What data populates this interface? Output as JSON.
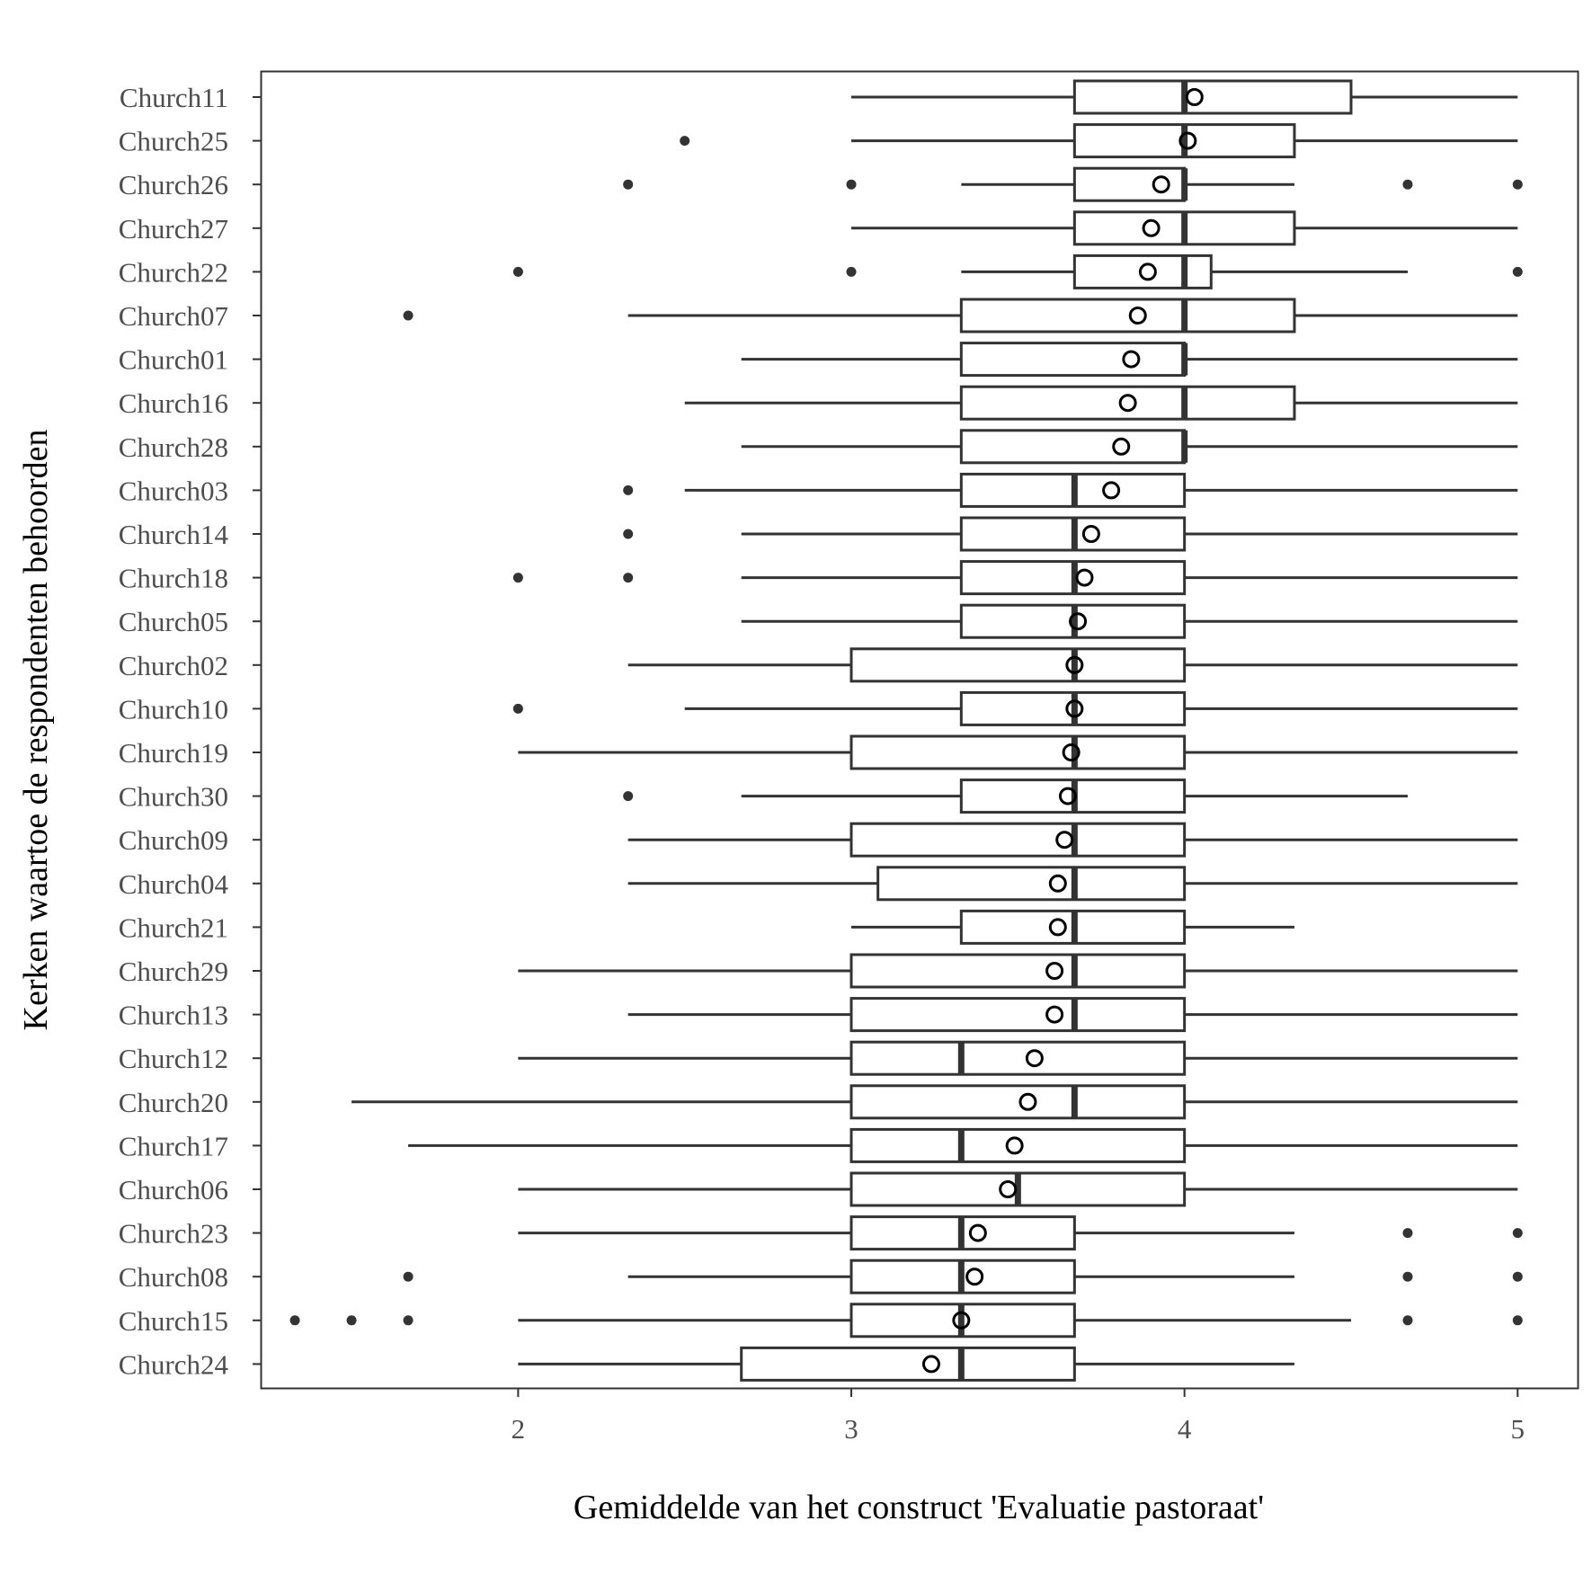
{
  "chart_data": {
    "type": "boxplot",
    "orientation": "horizontal",
    "xlabel": "Gemiddelde van het construct 'Evaluatie pastoraat'",
    "ylabel": "Kerken waartoe de respondenten behoorden",
    "xlim": [
      1.23,
      5.18
    ],
    "x_ticks": [
      2,
      3,
      4,
      5
    ],
    "grid": false,
    "colors": {
      "box": "#333333",
      "frame": "#333333",
      "background": "#ffffff"
    },
    "marker_legend": {
      "filled_dot": "outlier",
      "open_circle": "mean"
    },
    "categories": [
      "Church11",
      "Church25",
      "Church26",
      "Church27",
      "Church22",
      "Church07",
      "Church01",
      "Church16",
      "Church28",
      "Church03",
      "Church14",
      "Church18",
      "Church05",
      "Church02",
      "Church10",
      "Church19",
      "Church30",
      "Church09",
      "Church04",
      "Church21",
      "Church29",
      "Church13",
      "Church12",
      "Church20",
      "Church17",
      "Church06",
      "Church23",
      "Church08",
      "Church15",
      "Church24"
    ],
    "series": [
      {
        "label": "Church11",
        "whisker_low": 3.0,
        "q1": 3.67,
        "median": 4.0,
        "q3": 4.5,
        "whisker_high": 5.0,
        "mean": 4.03,
        "outliers": []
      },
      {
        "label": "Church25",
        "whisker_low": 3.0,
        "q1": 3.67,
        "median": 4.0,
        "q3": 4.33,
        "whisker_high": 5.0,
        "mean": 4.01,
        "outliers": [
          2.5
        ]
      },
      {
        "label": "Church26",
        "whisker_low": 3.33,
        "q1": 3.67,
        "median": 4.0,
        "q3": 4.0,
        "whisker_high": 4.33,
        "mean": 3.93,
        "outliers": [
          2.33,
          3.0,
          4.67,
          5.0
        ]
      },
      {
        "label": "Church27",
        "whisker_low": 3.0,
        "q1": 3.67,
        "median": 4.0,
        "q3": 4.33,
        "whisker_high": 5.0,
        "mean": 3.9,
        "outliers": []
      },
      {
        "label": "Church22",
        "whisker_low": 3.33,
        "q1": 3.67,
        "median": 4.0,
        "q3": 4.08,
        "whisker_high": 4.67,
        "mean": 3.89,
        "outliers": [
          2.0,
          3.0,
          5.0
        ]
      },
      {
        "label": "Church07",
        "whisker_low": 2.33,
        "q1": 3.33,
        "median": 4.0,
        "q3": 4.33,
        "whisker_high": 5.0,
        "mean": 3.86,
        "outliers": [
          1.67
        ]
      },
      {
        "label": "Church01",
        "whisker_low": 2.67,
        "q1": 3.33,
        "median": 4.0,
        "q3": 4.0,
        "whisker_high": 5.0,
        "mean": 3.84,
        "outliers": []
      },
      {
        "label": "Church16",
        "whisker_low": 2.5,
        "q1": 3.33,
        "median": 4.0,
        "q3": 4.33,
        "whisker_high": 5.0,
        "mean": 3.83,
        "outliers": []
      },
      {
        "label": "Church28",
        "whisker_low": 2.67,
        "q1": 3.33,
        "median": 4.0,
        "q3": 4.0,
        "whisker_high": 5.0,
        "mean": 3.81,
        "outliers": []
      },
      {
        "label": "Church03",
        "whisker_low": 2.5,
        "q1": 3.33,
        "median": 3.67,
        "q3": 4.0,
        "whisker_high": 5.0,
        "mean": 3.78,
        "outliers": [
          2.33
        ]
      },
      {
        "label": "Church14",
        "whisker_low": 2.67,
        "q1": 3.33,
        "median": 3.67,
        "q3": 4.0,
        "whisker_high": 5.0,
        "mean": 3.72,
        "outliers": [
          2.33
        ]
      },
      {
        "label": "Church18",
        "whisker_low": 2.67,
        "q1": 3.33,
        "median": 3.67,
        "q3": 4.0,
        "whisker_high": 5.0,
        "mean": 3.7,
        "outliers": [
          2.0,
          2.33
        ]
      },
      {
        "label": "Church05",
        "whisker_low": 2.67,
        "q1": 3.33,
        "median": 3.67,
        "q3": 4.0,
        "whisker_high": 5.0,
        "mean": 3.68,
        "outliers": []
      },
      {
        "label": "Church02",
        "whisker_low": 2.33,
        "q1": 3.0,
        "median": 3.67,
        "q3": 4.0,
        "whisker_high": 5.0,
        "mean": 3.67,
        "outliers": []
      },
      {
        "label": "Church10",
        "whisker_low": 2.5,
        "q1": 3.33,
        "median": 3.67,
        "q3": 4.0,
        "whisker_high": 5.0,
        "mean": 3.67,
        "outliers": [
          2.0
        ]
      },
      {
        "label": "Church19",
        "whisker_low": 2.0,
        "q1": 3.0,
        "median": 3.67,
        "q3": 4.0,
        "whisker_high": 5.0,
        "mean": 3.66,
        "outliers": []
      },
      {
        "label": "Church30",
        "whisker_low": 2.67,
        "q1": 3.33,
        "median": 3.67,
        "q3": 4.0,
        "whisker_high": 4.67,
        "mean": 3.65,
        "outliers": [
          2.33
        ]
      },
      {
        "label": "Church09",
        "whisker_low": 2.33,
        "q1": 3.0,
        "median": 3.67,
        "q3": 4.0,
        "whisker_high": 5.0,
        "mean": 3.64,
        "outliers": []
      },
      {
        "label": "Church04",
        "whisker_low": 2.33,
        "q1": 3.08,
        "median": 3.67,
        "q3": 4.0,
        "whisker_high": 5.0,
        "mean": 3.62,
        "outliers": []
      },
      {
        "label": "Church21",
        "whisker_low": 3.0,
        "q1": 3.33,
        "median": 3.67,
        "q3": 4.0,
        "whisker_high": 4.33,
        "mean": 3.62,
        "outliers": []
      },
      {
        "label": "Church29",
        "whisker_low": 2.0,
        "q1": 3.0,
        "median": 3.67,
        "q3": 4.0,
        "whisker_high": 5.0,
        "mean": 3.61,
        "outliers": []
      },
      {
        "label": "Church13",
        "whisker_low": 2.33,
        "q1": 3.0,
        "median": 3.67,
        "q3": 4.0,
        "whisker_high": 5.0,
        "mean": 3.61,
        "outliers": []
      },
      {
        "label": "Church12",
        "whisker_low": 2.0,
        "q1": 3.0,
        "median": 3.33,
        "q3": 4.0,
        "whisker_high": 5.0,
        "mean": 3.55,
        "outliers": []
      },
      {
        "label": "Church20",
        "whisker_low": 1.5,
        "q1": 3.0,
        "median": 3.67,
        "q3": 4.0,
        "whisker_high": 5.0,
        "mean": 3.53,
        "outliers": []
      },
      {
        "label": "Church17",
        "whisker_low": 1.67,
        "q1": 3.0,
        "median": 3.33,
        "q3": 4.0,
        "whisker_high": 5.0,
        "mean": 3.49,
        "outliers": []
      },
      {
        "label": "Church06",
        "whisker_low": 2.0,
        "q1": 3.0,
        "median": 3.5,
        "q3": 4.0,
        "whisker_high": 5.0,
        "mean": 3.47,
        "outliers": []
      },
      {
        "label": "Church23",
        "whisker_low": 2.0,
        "q1": 3.0,
        "median": 3.33,
        "q3": 3.67,
        "whisker_high": 4.33,
        "mean": 3.38,
        "outliers": [
          4.67,
          5.0
        ]
      },
      {
        "label": "Church08",
        "whisker_low": 2.33,
        "q1": 3.0,
        "median": 3.33,
        "q3": 3.67,
        "whisker_high": 4.33,
        "mean": 3.37,
        "outliers": [
          1.67,
          4.67,
          5.0
        ]
      },
      {
        "label": "Church15",
        "whisker_low": 2.0,
        "q1": 3.0,
        "median": 3.33,
        "q3": 3.67,
        "whisker_high": 4.5,
        "mean": 3.33,
        "outliers": [
          1.33,
          1.5,
          1.67,
          4.67,
          5.0
        ]
      },
      {
        "label": "Church24",
        "whisker_low": 2.0,
        "q1": 2.67,
        "median": 3.33,
        "q3": 3.67,
        "whisker_high": 4.33,
        "mean": 3.24,
        "outliers": []
      }
    ]
  }
}
